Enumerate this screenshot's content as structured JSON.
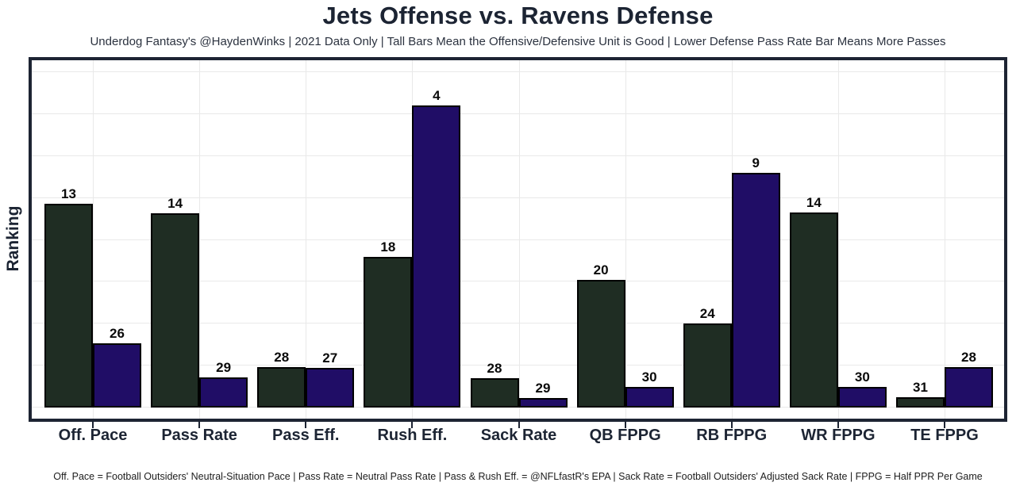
{
  "chart_data": {
    "type": "bar",
    "title": "Jets Offense vs. Ravens Defense",
    "subtitle": "Underdog Fantasy's @HaydenWinks | 2021 Data Only | Tall Bars Mean the Offensive/Defensive Unit is Good | Lower Defense Pass Rate Bar Means More Passes",
    "footnote": "Off. Pace = Football Outsiders' Neutral-Situation Pace | Pass Rate = Neutral Pass Rate | Pass & Rush Eff. = @NFLfastR's EPA | Sack Rate = Football Outsiders' Adjusted Sack Rate | FPPG = Half PPR Per Game",
    "xlabel": "",
    "ylabel": "Ranking",
    "y_axis_note": "Ranks 1 (best, tallest bar) to 32 (worst, shortest bar); no numeric tick labels shown",
    "grid": "on",
    "legend": "none",
    "categories": [
      "Off. Pace",
      "Pass Rate",
      "Pass Eff.",
      "Rush Eff.",
      "Sack Rate",
      "QB FPPG",
      "RB FPPG",
      "WR FPPG",
      "TE FPPG"
    ],
    "series": [
      {
        "name": "Jets Offense",
        "color": "#1f2d23",
        "ranks": [
          13,
          14,
          28,
          18,
          28,
          20,
          24,
          14,
          31
        ],
        "height_frac": [
          0.608,
          0.579,
          0.121,
          0.449,
          0.087,
          0.381,
          0.251,
          0.582,
          0.031
        ]
      },
      {
        "name": "Ravens Defense",
        "color": "#200d66",
        "ranks": [
          26,
          29,
          27,
          4,
          29,
          30,
          9,
          30,
          28
        ],
        "height_frac": [
          0.192,
          0.09,
          0.118,
          0.901,
          0.028,
          0.061,
          0.7,
          0.061,
          0.121
        ]
      }
    ]
  }
}
